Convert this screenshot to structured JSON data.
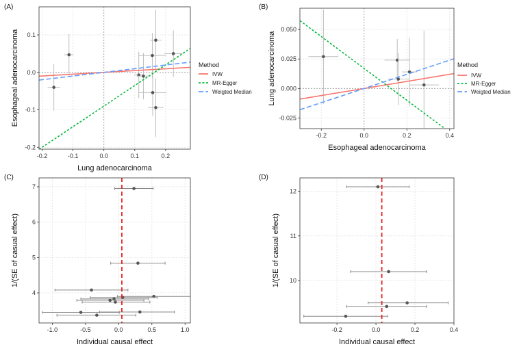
{
  "colors": {
    "ivw": "#f8766d",
    "mr_egger": "#00ba38",
    "weighted_median": "#619cff",
    "points": "#555555",
    "errorbars": "#bdbdbd",
    "forest_line": "#e8221b",
    "grid": "#e6e6e6",
    "panel_border": "#333333"
  },
  "chart_data": [
    {
      "panel": "(A)",
      "type": "scatter",
      "xlabel": "Lung adenocarcinoma",
      "ylabel": "Esophageal adenocarcinoma",
      "xlim": [
        -0.21,
        0.28
      ],
      "ylim": [
        -0.205,
        0.175
      ],
      "xticks": [
        -0.2,
        -0.1,
        0.0,
        0.1,
        0.2
      ],
      "xticklabels": [
        "-0.2",
        "-0.1",
        "0.0",
        "0.1",
        "0.2"
      ],
      "yticks": [
        -0.2,
        -0.1,
        0.0,
        0.1
      ],
      "yticklabels": [
        "-0.2",
        "-0.1",
        "0.0",
        "0.1"
      ],
      "points": [
        {
          "x": -0.162,
          "y": -0.04,
          "xerr": 0.02,
          "yerr": 0.062
        },
        {
          "x": -0.113,
          "y": 0.047,
          "xerr": 0.015,
          "yerr": 0.055
        },
        {
          "x": 0.113,
          "y": -0.007,
          "xerr": 0.015,
          "yerr": 0.062
        },
        {
          "x": 0.128,
          "y": -0.01,
          "xerr": 0.022,
          "yerr": 0.062
        },
        {
          "x": 0.157,
          "y": 0.045,
          "xerr": 0.045,
          "yerr": 0.06
        },
        {
          "x": 0.158,
          "y": -0.054,
          "xerr": 0.045,
          "yerr": 0.062
        },
        {
          "x": 0.168,
          "y": 0.086,
          "xerr": 0.018,
          "yerr": 0.082
        },
        {
          "x": 0.168,
          "y": -0.094,
          "xerr": 0.025,
          "yerr": 0.078
        },
        {
          "x": 0.225,
          "y": 0.05,
          "xerr": 0.03,
          "yerr": 0.062
        }
      ],
      "lines": [
        {
          "name": "IVW",
          "slope": 0.048
        },
        {
          "name": "MR-Egger",
          "slope": 0.55,
          "intercept": -0.09
        },
        {
          "name": "Weigted Median",
          "slope": 0.098
        }
      ]
    },
    {
      "panel": "(B)",
      "type": "scatter",
      "xlabel": "Esophageal adenocarcinoma",
      "ylabel": "Lung adenocarcinoma",
      "xlim": [
        -0.3,
        0.42
      ],
      "ylim": [
        -0.034,
        0.068
      ],
      "xticks": [
        -0.2,
        0.0,
        0.2,
        0.4
      ],
      "xticklabels": [
        "-0.2",
        "0.0",
        "0.2",
        "0.4"
      ],
      "yticks": [
        -0.025,
        0.0,
        0.025,
        0.05
      ],
      "yticklabels": [
        "-0.025",
        "0.000",
        "0.025",
        "0.050"
      ],
      "points": [
        {
          "x": -0.19,
          "y": 0.027,
          "xerr": 0.07,
          "yerr": 0.04
        },
        {
          "x": 0.155,
          "y": 0.024,
          "xerr": 0.06,
          "yerr": 0.018
        },
        {
          "x": 0.16,
          "y": 0.008,
          "xerr": 0.05,
          "yerr": 0.022
        },
        {
          "x": 0.212,
          "y": 0.014,
          "xerr": 0.035,
          "yerr": 0.029
        },
        {
          "x": 0.28,
          "y": 0.003,
          "xerr": 0.07,
          "yerr": 0.046
        }
      ],
      "lines": [
        {
          "name": "IVW",
          "slope": 0.03
        },
        {
          "name": "MR-Egger",
          "slope": -0.135,
          "intercept": 0.017
        },
        {
          "name": "Weigted Median",
          "slope": 0.06
        }
      ]
    },
    {
      "panel": "(C)",
      "type": "forest",
      "xlabel": "Individual causal effect",
      "ylabel": "1/(SE of casual effect)",
      "xlim": [
        -1.2,
        1.08
      ],
      "ylim": [
        3.15,
        7.25
      ],
      "xticks": [
        -1.0,
        -0.5,
        0.0,
        0.5,
        1.0
      ],
      "xticklabels": [
        "-1.0",
        "-0.5",
        "0.0",
        "0.5",
        "1.0"
      ],
      "yticks": [
        4,
        5,
        6,
        7
      ],
      "yticklabels": [
        "4",
        "5",
        "6",
        "7"
      ],
      "ref_line": 0.048,
      "points": [
        {
          "x": 0.23,
          "y": 6.95,
          "lo": -0.06,
          "hi": 0.52
        },
        {
          "x": 0.29,
          "y": 4.84,
          "lo": -0.12,
          "hi": 0.7
        },
        {
          "x": -0.41,
          "y": 4.08,
          "lo": -0.96,
          "hi": 0.14
        },
        {
          "x": 0.53,
          "y": 3.9,
          "lo": -0.02,
          "hi": 1.08
        },
        {
          "x": 0.06,
          "y": 3.87,
          "lo": -0.43,
          "hi": 0.58
        },
        {
          "x": -0.07,
          "y": 3.83,
          "lo": -0.57,
          "hi": 0.45
        },
        {
          "x": -0.13,
          "y": 3.79,
          "lo": -0.63,
          "hi": 0.38
        },
        {
          "x": -0.05,
          "y": 3.74,
          "lo": -0.55,
          "hi": 0.47
        },
        {
          "x": 0.32,
          "y": 3.46,
          "lo": -0.29,
          "hi": 0.84
        },
        {
          "x": -0.57,
          "y": 3.45,
          "lo": -1.15,
          "hi": 0.01
        },
        {
          "x": -0.33,
          "y": 3.37,
          "lo": -0.93,
          "hi": 0.26
        }
      ]
    },
    {
      "panel": "(D)",
      "type": "forest",
      "xlabel": "Individual causal effect",
      "ylabel": "1/(SE of casual effect)",
      "xlim": [
        -0.39,
        0.4
      ],
      "ylim": [
        9.05,
        12.3
      ],
      "xticks": [
        -0.2,
        0.0,
        0.2,
        0.4
      ],
      "xticklabels": [
        "-0.2",
        "0.0",
        "0.2",
        "0.4"
      ],
      "yticks": [
        10,
        11,
        12
      ],
      "yticklabels": [
        "10",
        "11",
        "12"
      ],
      "ref_line": 0.03,
      "points": [
        {
          "x": 0.01,
          "y": 12.1,
          "lo": -0.15,
          "hi": 0.17
        },
        {
          "x": 0.065,
          "y": 10.2,
          "lo": -0.13,
          "hi": 0.26
        },
        {
          "x": 0.16,
          "y": 9.5,
          "lo": -0.04,
          "hi": 0.37
        },
        {
          "x": 0.055,
          "y": 9.42,
          "lo": -0.15,
          "hi": 0.26
        },
        {
          "x": -0.155,
          "y": 9.2,
          "lo": -0.37,
          "hi": 0.06
        }
      ]
    }
  ],
  "legend": {
    "title": "Method",
    "items": [
      {
        "label": "IVW",
        "key": "ivw"
      },
      {
        "label": "MR-Egger",
        "key": "mr_egger"
      },
      {
        "label": "Weigted Median",
        "key": "weighted_median"
      }
    ]
  }
}
